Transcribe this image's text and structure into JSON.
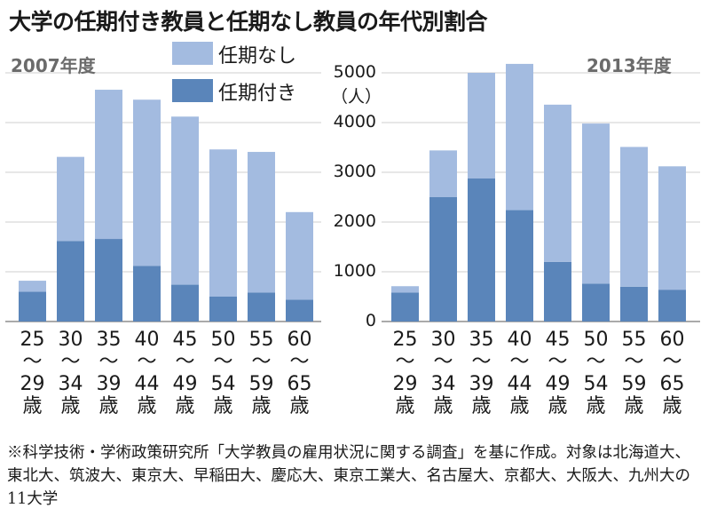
{
  "title": "大学の任期付き教員と任期なし教員の年代別割合",
  "legend": {
    "no_term": "任期なし",
    "fixed_term": "任期付き"
  },
  "y_axis": {
    "unit": "（人）",
    "ticks": [
      "0",
      "1000",
      "2000",
      "3000",
      "4000",
      "5000"
    ]
  },
  "age_labels": [
    [
      "25",
      "～",
      "29",
      "歳"
    ],
    [
      "30",
      "～",
      "34",
      "歳"
    ],
    [
      "35",
      "～",
      "39",
      "歳"
    ],
    [
      "40",
      "～",
      "44",
      "歳"
    ],
    [
      "45",
      "～",
      "49",
      "歳"
    ],
    [
      "50",
      "～",
      "54",
      "歳"
    ],
    [
      "55",
      "～",
      "59",
      "歳"
    ],
    [
      "60",
      "～",
      "65",
      "歳"
    ]
  ],
  "note": "※科学技術・学術政策研究所「大学教員の雇用状況に関する調査」を基に作成。対象は北海道大、東北大、筑波大、東京大、早稲田大、慶応大、東京工業大、名古屋大、京都大、大阪大、九州大の11大学",
  "colors": {
    "no_term": "#a3bbe0",
    "fixed_term": "#5a85ba"
  },
  "chart_data": [
    {
      "type": "bar",
      "title": "2007年度",
      "categories": [
        "25～29歳",
        "30～34歳",
        "35～39歳",
        "40～44歳",
        "45～49歳",
        "50～54歳",
        "55～59歳",
        "60～65歳"
      ],
      "series": [
        {
          "name": "任期付き",
          "values": [
            600,
            1620,
            1660,
            1120,
            740,
            500,
            580,
            440
          ]
        },
        {
          "name": "任期なし",
          "values": [
            220,
            1690,
            3000,
            3340,
            3380,
            2960,
            2830,
            1760
          ]
        }
      ],
      "stacked": true,
      "ylabel": "（人）",
      "ylim": [
        0,
        5000
      ]
    },
    {
      "type": "bar",
      "title": "2013年度",
      "categories": [
        "25～29歳",
        "30～34歳",
        "35～39歳",
        "40～44歳",
        "45～49歳",
        "50～54歳",
        "55～59歳",
        "60～65歳"
      ],
      "series": [
        {
          "name": "任期付き",
          "values": [
            580,
            2500,
            2880,
            2240,
            1200,
            760,
            700,
            640
          ]
        },
        {
          "name": "任期なし",
          "values": [
            130,
            940,
            2120,
            2940,
            3160,
            3220,
            2810,
            2480
          ]
        }
      ],
      "stacked": true,
      "ylabel": "（人）",
      "ylim": [
        0,
        5000
      ]
    }
  ]
}
